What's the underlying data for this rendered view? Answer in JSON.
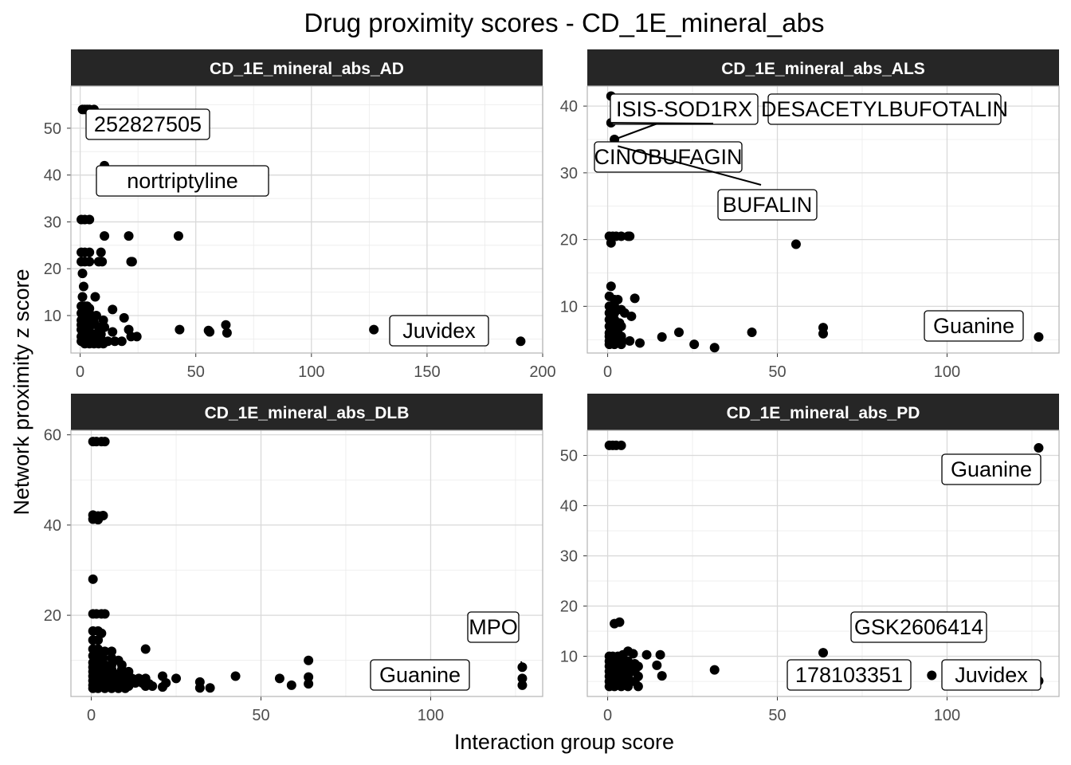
{
  "chart_data": {
    "type": "scatter",
    "title": "Drug proximity scores - CD_1E_mineral_abs",
    "xlabel": "Interaction group score",
    "ylabel": "Network proximity z score",
    "grid": true,
    "legend": "none",
    "point_color": "#000000",
    "strip_color": "#262626",
    "panels": [
      {
        "title": "CD_1E_mineral_abs_AD",
        "xlim": [
          -4,
          200
        ],
        "ylim": [
          2,
          59
        ],
        "xticks": [
          0,
          50,
          100,
          150,
          200
        ],
        "yticks": [
          10,
          20,
          30,
          40,
          50
        ],
        "points": [
          [
            1,
            54
          ],
          [
            2,
            54
          ],
          [
            3,
            54
          ],
          [
            4,
            54
          ],
          [
            6,
            54
          ],
          [
            10.5,
            42
          ],
          [
            0.5,
            30.5
          ],
          [
            2,
            30.5
          ],
          [
            4,
            30.5
          ],
          [
            10.5,
            27
          ],
          [
            21,
            27
          ],
          [
            42.5,
            27
          ],
          [
            0.5,
            23.5
          ],
          [
            2,
            23.5
          ],
          [
            4,
            23.5
          ],
          [
            9,
            23.5
          ],
          [
            0.5,
            21.5
          ],
          [
            2,
            21.5
          ],
          [
            4,
            21.5
          ],
          [
            8,
            21.5
          ],
          [
            9.5,
            21.5
          ],
          [
            22,
            21.5
          ],
          [
            22.5,
            21.5
          ],
          [
            1,
            19
          ],
          [
            1.5,
            16.2
          ],
          [
            1,
            14
          ],
          [
            6.5,
            14
          ],
          [
            0.5,
            12
          ],
          [
            2,
            12
          ],
          [
            3,
            12
          ],
          [
            4,
            11.5
          ],
          [
            14,
            11.3
          ],
          [
            0.5,
            10.5
          ],
          [
            2,
            10.5
          ],
          [
            3,
            10
          ],
          [
            5,
            10
          ],
          [
            7,
            10
          ],
          [
            0.5,
            9
          ],
          [
            3,
            9
          ],
          [
            6,
            8.5
          ],
          [
            10,
            9
          ],
          [
            19,
            9.5
          ],
          [
            0.5,
            8
          ],
          [
            2,
            8
          ],
          [
            4,
            7.5
          ],
          [
            8,
            7.5
          ],
          [
            10.5,
            7.5
          ],
          [
            21,
            7
          ],
          [
            43,
            7
          ],
          [
            55.5,
            6.8
          ],
          [
            56,
            6.5
          ],
          [
            63,
            8
          ],
          [
            63.5,
            6.3
          ],
          [
            127,
            7
          ],
          [
            0.5,
            7
          ],
          [
            2,
            6.5
          ],
          [
            4,
            6
          ],
          [
            6,
            6
          ],
          [
            9,
            6
          ],
          [
            14,
            6.5
          ],
          [
            22,
            5.5
          ],
          [
            24.5,
            5.5
          ],
          [
            0.5,
            5.5
          ],
          [
            2,
            5
          ],
          [
            3.5,
            5
          ],
          [
            5,
            5
          ],
          [
            7,
            5
          ],
          [
            9,
            5
          ],
          [
            12,
            4.5
          ],
          [
            15,
            4.5
          ],
          [
            18,
            4.5
          ],
          [
            0.5,
            4.5
          ],
          [
            2,
            4
          ],
          [
            4,
            4
          ],
          [
            6,
            4
          ],
          [
            8,
            4
          ],
          [
            10,
            4
          ],
          [
            190.5,
            4.5
          ]
        ],
        "labels": [
          {
            "text": "252827505",
            "x": 1,
            "y": 54
          },
          {
            "text": "nortriptyline",
            "x": 10.5,
            "y": 42
          },
          {
            "text": "Juvidex",
            "x": 127,
            "y": 7
          }
        ]
      },
      {
        "title": "CD_1E_mineral_abs_ALS",
        "xlim": [
          -6,
          133
        ],
        "ylim": [
          3,
          43
        ],
        "xticks": [
          0,
          50,
          100
        ],
        "yticks": [
          10,
          20,
          30,
          40
        ],
        "points": [
          [
            1,
            41.5
          ],
          [
            1,
            37.5
          ],
          [
            2,
            35
          ],
          [
            3,
            34
          ],
          [
            0.5,
            20.5
          ],
          [
            1.5,
            20.5
          ],
          [
            2.5,
            20.5
          ],
          [
            4,
            20.5
          ],
          [
            6,
            20.5
          ],
          [
            6.5,
            20.5
          ],
          [
            1,
            19.5
          ],
          [
            55.5,
            19.3
          ],
          [
            1,
            13
          ],
          [
            0.5,
            11.5
          ],
          [
            2,
            11
          ],
          [
            3,
            11
          ],
          [
            8,
            11.2
          ],
          [
            0.5,
            10
          ],
          [
            2,
            10
          ],
          [
            4,
            9.5
          ],
          [
            0.5,
            9
          ],
          [
            2,
            9
          ],
          [
            5,
            9
          ],
          [
            7,
            8.5
          ],
          [
            0.5,
            8
          ],
          [
            2,
            8
          ],
          [
            3.5,
            7.5
          ],
          [
            0.5,
            7
          ],
          [
            2,
            7
          ],
          [
            4,
            7
          ],
          [
            63.5,
            6.8
          ],
          [
            0.5,
            6
          ],
          [
            1.5,
            6
          ],
          [
            3,
            6
          ],
          [
            21,
            6.1
          ],
          [
            42.5,
            6.1
          ],
          [
            63.5,
            5.9
          ],
          [
            0.5,
            5.5
          ],
          [
            2,
            5.5
          ],
          [
            4,
            5.5
          ],
          [
            16,
            5.4
          ],
          [
            0.5,
            4.8
          ],
          [
            2,
            4.8
          ],
          [
            4,
            4.8
          ],
          [
            6.5,
            4.8
          ],
          [
            0.5,
            4.3
          ],
          [
            2,
            4.3
          ],
          [
            4,
            4.3
          ],
          [
            9.5,
            4.5
          ],
          [
            25.5,
            4.3
          ],
          [
            31.5,
            3.8
          ],
          [
            127,
            5.4
          ]
        ],
        "labels": [
          {
            "text": "ISIS-SOD1RX",
            "x": 1,
            "y": 41.5
          },
          {
            "text": "DESACETYLBUFOTALIN",
            "x": 1,
            "y": 37.5
          },
          {
            "text": "CINOBUFAGIN",
            "x": 2,
            "y": 35
          },
          {
            "text": "BUFALIN",
            "x": 3,
            "y": 34
          },
          {
            "text": "Guanine",
            "x": 127,
            "y": 5.4
          }
        ]
      },
      {
        "title": "CD_1E_mineral_abs_DLB",
        "xlim": [
          -6,
          133
        ],
        "ylim": [
          2,
          61
        ],
        "xticks": [
          0,
          50,
          100
        ],
        "yticks": [
          20,
          40,
          60
        ],
        "points": [
          [
            0.5,
            58.5
          ],
          [
            1.5,
            58.5
          ],
          [
            3,
            58.5
          ],
          [
            4,
            58.5
          ],
          [
            0.5,
            42.2
          ],
          [
            2,
            42
          ],
          [
            3,
            42
          ],
          [
            3.5,
            42.1
          ],
          [
            0.5,
            41.3
          ],
          [
            2,
            41.2
          ],
          [
            0.5,
            28
          ],
          [
            0.5,
            20.3
          ],
          [
            1.5,
            20.3
          ],
          [
            3,
            20.3
          ],
          [
            4,
            20.3
          ],
          [
            0.5,
            16.5
          ],
          [
            2,
            16.5
          ],
          [
            3,
            16
          ],
          [
            0.5,
            14.5
          ],
          [
            2,
            14.5
          ],
          [
            16,
            12.5
          ],
          [
            0.5,
            12.5
          ],
          [
            2,
            12.5
          ],
          [
            4,
            12
          ],
          [
            6,
            12
          ],
          [
            0.5,
            11
          ],
          [
            2,
            11
          ],
          [
            3.5,
            10.5
          ],
          [
            6,
            10.5
          ],
          [
            8,
            10
          ],
          [
            0.5,
            9.5
          ],
          [
            2,
            9.5
          ],
          [
            4,
            9
          ],
          [
            6,
            9
          ],
          [
            9,
            9
          ],
          [
            64,
            10
          ],
          [
            0.5,
            8.5
          ],
          [
            2,
            8.5
          ],
          [
            4,
            8
          ],
          [
            6,
            8
          ],
          [
            9,
            8
          ],
          [
            11,
            7.5
          ],
          [
            0.5,
            7.5
          ],
          [
            2,
            7.5
          ],
          [
            4,
            7
          ],
          [
            6,
            7
          ],
          [
            8,
            7
          ],
          [
            10,
            6.8
          ],
          [
            0.5,
            6.5
          ],
          [
            2,
            6.5
          ],
          [
            4,
            6.5
          ],
          [
            6,
            6
          ],
          [
            8,
            6
          ],
          [
            12,
            6
          ],
          [
            14,
            6
          ],
          [
            16,
            6
          ],
          [
            21,
            6.5
          ],
          [
            25,
            6
          ],
          [
            42.5,
            6.5
          ],
          [
            55.5,
            6
          ],
          [
            64,
            6.3
          ],
          [
            0.5,
            5.5
          ],
          [
            2,
            5.5
          ],
          [
            4,
            5.5
          ],
          [
            6,
            5
          ],
          [
            8,
            5
          ],
          [
            10,
            5
          ],
          [
            13,
            5
          ],
          [
            15,
            5
          ],
          [
            17,
            4.8
          ],
          [
            22,
            5
          ],
          [
            32,
            5.2
          ],
          [
            64,
            4.8
          ],
          [
            0.5,
            4.5
          ],
          [
            2,
            4.5
          ],
          [
            4,
            4.5
          ],
          [
            6,
            4.5
          ],
          [
            8,
            4.5
          ],
          [
            11,
            4.3
          ],
          [
            16,
            4.3
          ],
          [
            18,
            4.3
          ],
          [
            21,
            4.1
          ],
          [
            32,
            3.9
          ],
          [
            35,
            3.9
          ],
          [
            59,
            4.5
          ],
          [
            0.5,
            3.8
          ],
          [
            2,
            3.8
          ],
          [
            4,
            3.8
          ],
          [
            6,
            3.8
          ],
          [
            8,
            3.8
          ],
          [
            10,
            3.8
          ],
          [
            127,
            8.5
          ],
          [
            127,
            6
          ],
          [
            127,
            4.5
          ]
        ],
        "labels": [
          {
            "text": "MPO",
            "x": 127,
            "y": 8.5
          },
          {
            "text": "Guanine",
            "x": 127,
            "y": 6
          }
        ]
      },
      {
        "title": "CD_1E_mineral_abs_PD",
        "xlim": [
          -6,
          133
        ],
        "ylim": [
          2,
          55
        ],
        "xticks": [
          0,
          50,
          100
        ],
        "yticks": [
          10,
          20,
          30,
          40,
          50
        ],
        "points": [
          [
            0.5,
            52
          ],
          [
            1.5,
            52
          ],
          [
            2.5,
            52
          ],
          [
            4,
            52
          ],
          [
            127,
            51.5
          ],
          [
            2,
            16.5
          ],
          [
            3.5,
            16.8
          ],
          [
            0.5,
            10
          ],
          [
            1.5,
            10
          ],
          [
            3,
            10
          ],
          [
            4.5,
            10.3
          ],
          [
            6,
            11
          ],
          [
            7.5,
            10.5
          ],
          [
            11.5,
            10.3
          ],
          [
            15.5,
            10.3
          ],
          [
            63.5,
            10.7
          ],
          [
            0.5,
            9
          ],
          [
            2,
            9
          ],
          [
            4,
            9
          ],
          [
            6,
            9
          ],
          [
            8,
            8.5
          ],
          [
            0.5,
            8
          ],
          [
            2,
            8
          ],
          [
            4,
            8
          ],
          [
            6,
            8
          ],
          [
            9,
            8
          ],
          [
            14.5,
            8.2
          ],
          [
            31.5,
            7.3
          ],
          [
            0.5,
            7
          ],
          [
            2,
            7
          ],
          [
            4,
            7
          ],
          [
            6,
            7
          ],
          [
            8,
            7
          ],
          [
            0.5,
            6
          ],
          [
            2,
            6
          ],
          [
            4,
            6
          ],
          [
            6,
            6
          ],
          [
            9,
            6
          ],
          [
            16,
            6.1
          ],
          [
            0.5,
            5
          ],
          [
            2,
            5
          ],
          [
            4,
            5
          ],
          [
            6,
            5
          ],
          [
            8,
            5
          ],
          [
            95.5,
            6.2
          ],
          [
            0.5,
            4
          ],
          [
            2,
            4
          ],
          [
            4,
            4
          ],
          [
            6,
            4
          ],
          [
            9,
            4
          ],
          [
            127,
            5.1
          ]
        ],
        "labels": [
          {
            "text": "Guanine",
            "x": 127,
            "y": 51.5
          },
          {
            "text": "GSK2606414",
            "x": 95.5,
            "y": 6.2
          },
          {
            "text": "178103351",
            "x": 63.5,
            "y": 10.7
          },
          {
            "text": "Juvidex",
            "x": 127,
            "y": 5.1
          }
        ]
      }
    ]
  }
}
